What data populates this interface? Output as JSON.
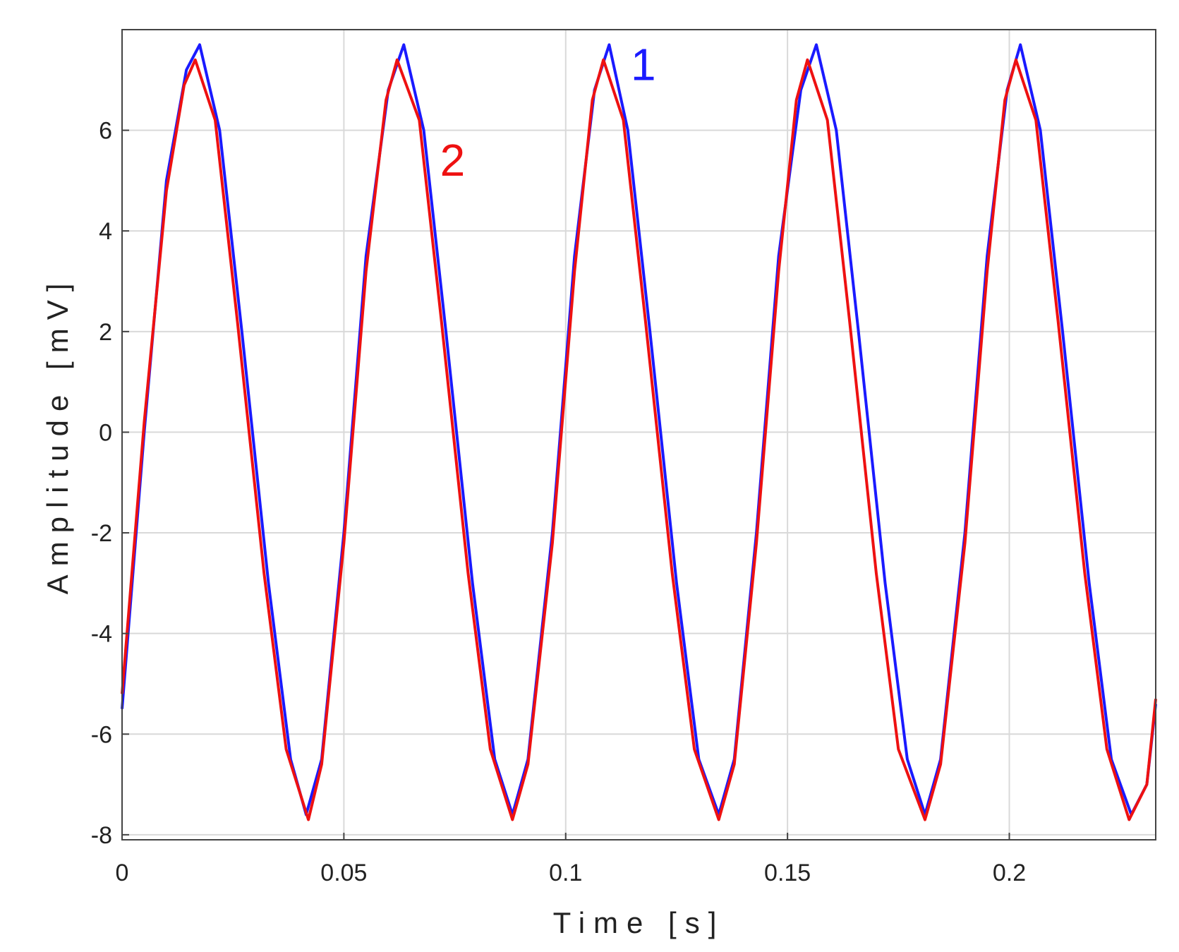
{
  "chart_data": {
    "type": "line",
    "xlabel": "Time [s]",
    "ylabel": "Amplitude [mV]",
    "xlim": [
      0,
      0.233
    ],
    "ylim": [
      -8.1,
      8.0
    ],
    "grid": true,
    "xticks": [
      0,
      0.05,
      0.1,
      0.15,
      0.2
    ],
    "xtick_labels": [
      "0",
      "0.05",
      "0.1",
      "0.15",
      "0.2"
    ],
    "yticks": [
      -8,
      -6,
      -4,
      -2,
      0,
      2,
      4,
      6
    ],
    "ytick_labels": [
      "-8",
      "-6",
      "-4",
      "-2",
      "0",
      "2",
      "4",
      "6"
    ],
    "annotations": [
      {
        "text": "1",
        "color": "#1a1aff",
        "x": 0.1175,
        "y": 7.0
      },
      {
        "text": "2",
        "color": "#ee1111",
        "x": 0.0745,
        "y": 5.1
      }
    ],
    "series": [
      {
        "color": "#1a1aff",
        "x": [
          0.0,
          0.005,
          0.01,
          0.0145,
          0.0175,
          0.022,
          0.027,
          0.033,
          0.038,
          0.0415,
          0.045,
          0.05,
          0.055,
          0.06,
          0.0635,
          0.068,
          0.073,
          0.079,
          0.084,
          0.088,
          0.0915,
          0.097,
          0.102,
          0.1065,
          0.1098,
          0.114,
          0.119,
          0.125,
          0.13,
          0.1345,
          0.138,
          0.143,
          0.148,
          0.153,
          0.1565,
          0.161,
          0.166,
          0.172,
          0.177,
          0.181,
          0.1845,
          0.19,
          0.195,
          0.1995,
          0.2025,
          0.207,
          0.212,
          0.218,
          0.223,
          0.2275,
          0.231,
          0.233
        ],
        "y": [
          -5.5,
          0.0,
          5.0,
          7.2,
          7.7,
          6.0,
          2.0,
          -3.0,
          -6.5,
          -7.6,
          -6.5,
          -2.0,
          3.5,
          6.8,
          7.7,
          6.0,
          2.0,
          -3.0,
          -6.5,
          -7.6,
          -6.5,
          -2.0,
          3.5,
          6.8,
          7.7,
          6.0,
          2.0,
          -3.0,
          -6.5,
          -7.6,
          -6.5,
          -2.0,
          3.5,
          6.8,
          7.7,
          6.0,
          2.0,
          -3.0,
          -6.5,
          -7.6,
          -6.5,
          -2.0,
          3.5,
          6.8,
          7.7,
          6.0,
          2.0,
          -3.0,
          -6.5,
          -7.6,
          -7.0,
          -5.4
        ]
      },
      {
        "color": "#ee1111",
        "x": [
          0.0,
          0.005,
          0.01,
          0.014,
          0.0165,
          0.021,
          0.026,
          0.032,
          0.037,
          0.042,
          0.045,
          0.05,
          0.055,
          0.0595,
          0.062,
          0.067,
          0.072,
          0.078,
          0.083,
          0.088,
          0.0915,
          0.097,
          0.102,
          0.106,
          0.1085,
          0.113,
          0.118,
          0.124,
          0.129,
          0.1345,
          0.138,
          0.143,
          0.148,
          0.152,
          0.1545,
          0.159,
          0.164,
          0.17,
          0.175,
          0.181,
          0.1845,
          0.19,
          0.195,
          0.199,
          0.2015,
          0.206,
          0.211,
          0.217,
          0.222,
          0.227,
          0.231,
          0.233
        ],
        "y": [
          -5.2,
          0.2,
          4.8,
          6.9,
          7.4,
          6.2,
          2.2,
          -2.8,
          -6.3,
          -7.7,
          -6.6,
          -2.2,
          3.2,
          6.6,
          7.4,
          6.2,
          2.2,
          -2.8,
          -6.3,
          -7.7,
          -6.6,
          -2.2,
          3.2,
          6.6,
          7.4,
          6.2,
          2.2,
          -2.8,
          -6.3,
          -7.7,
          -6.6,
          -2.2,
          3.2,
          6.6,
          7.4,
          6.2,
          2.2,
          -2.8,
          -6.3,
          -7.7,
          -6.6,
          -2.2,
          3.2,
          6.6,
          7.4,
          6.2,
          2.2,
          -2.8,
          -6.3,
          -7.7,
          -7.0,
          -5.3
        ]
      }
    ]
  }
}
